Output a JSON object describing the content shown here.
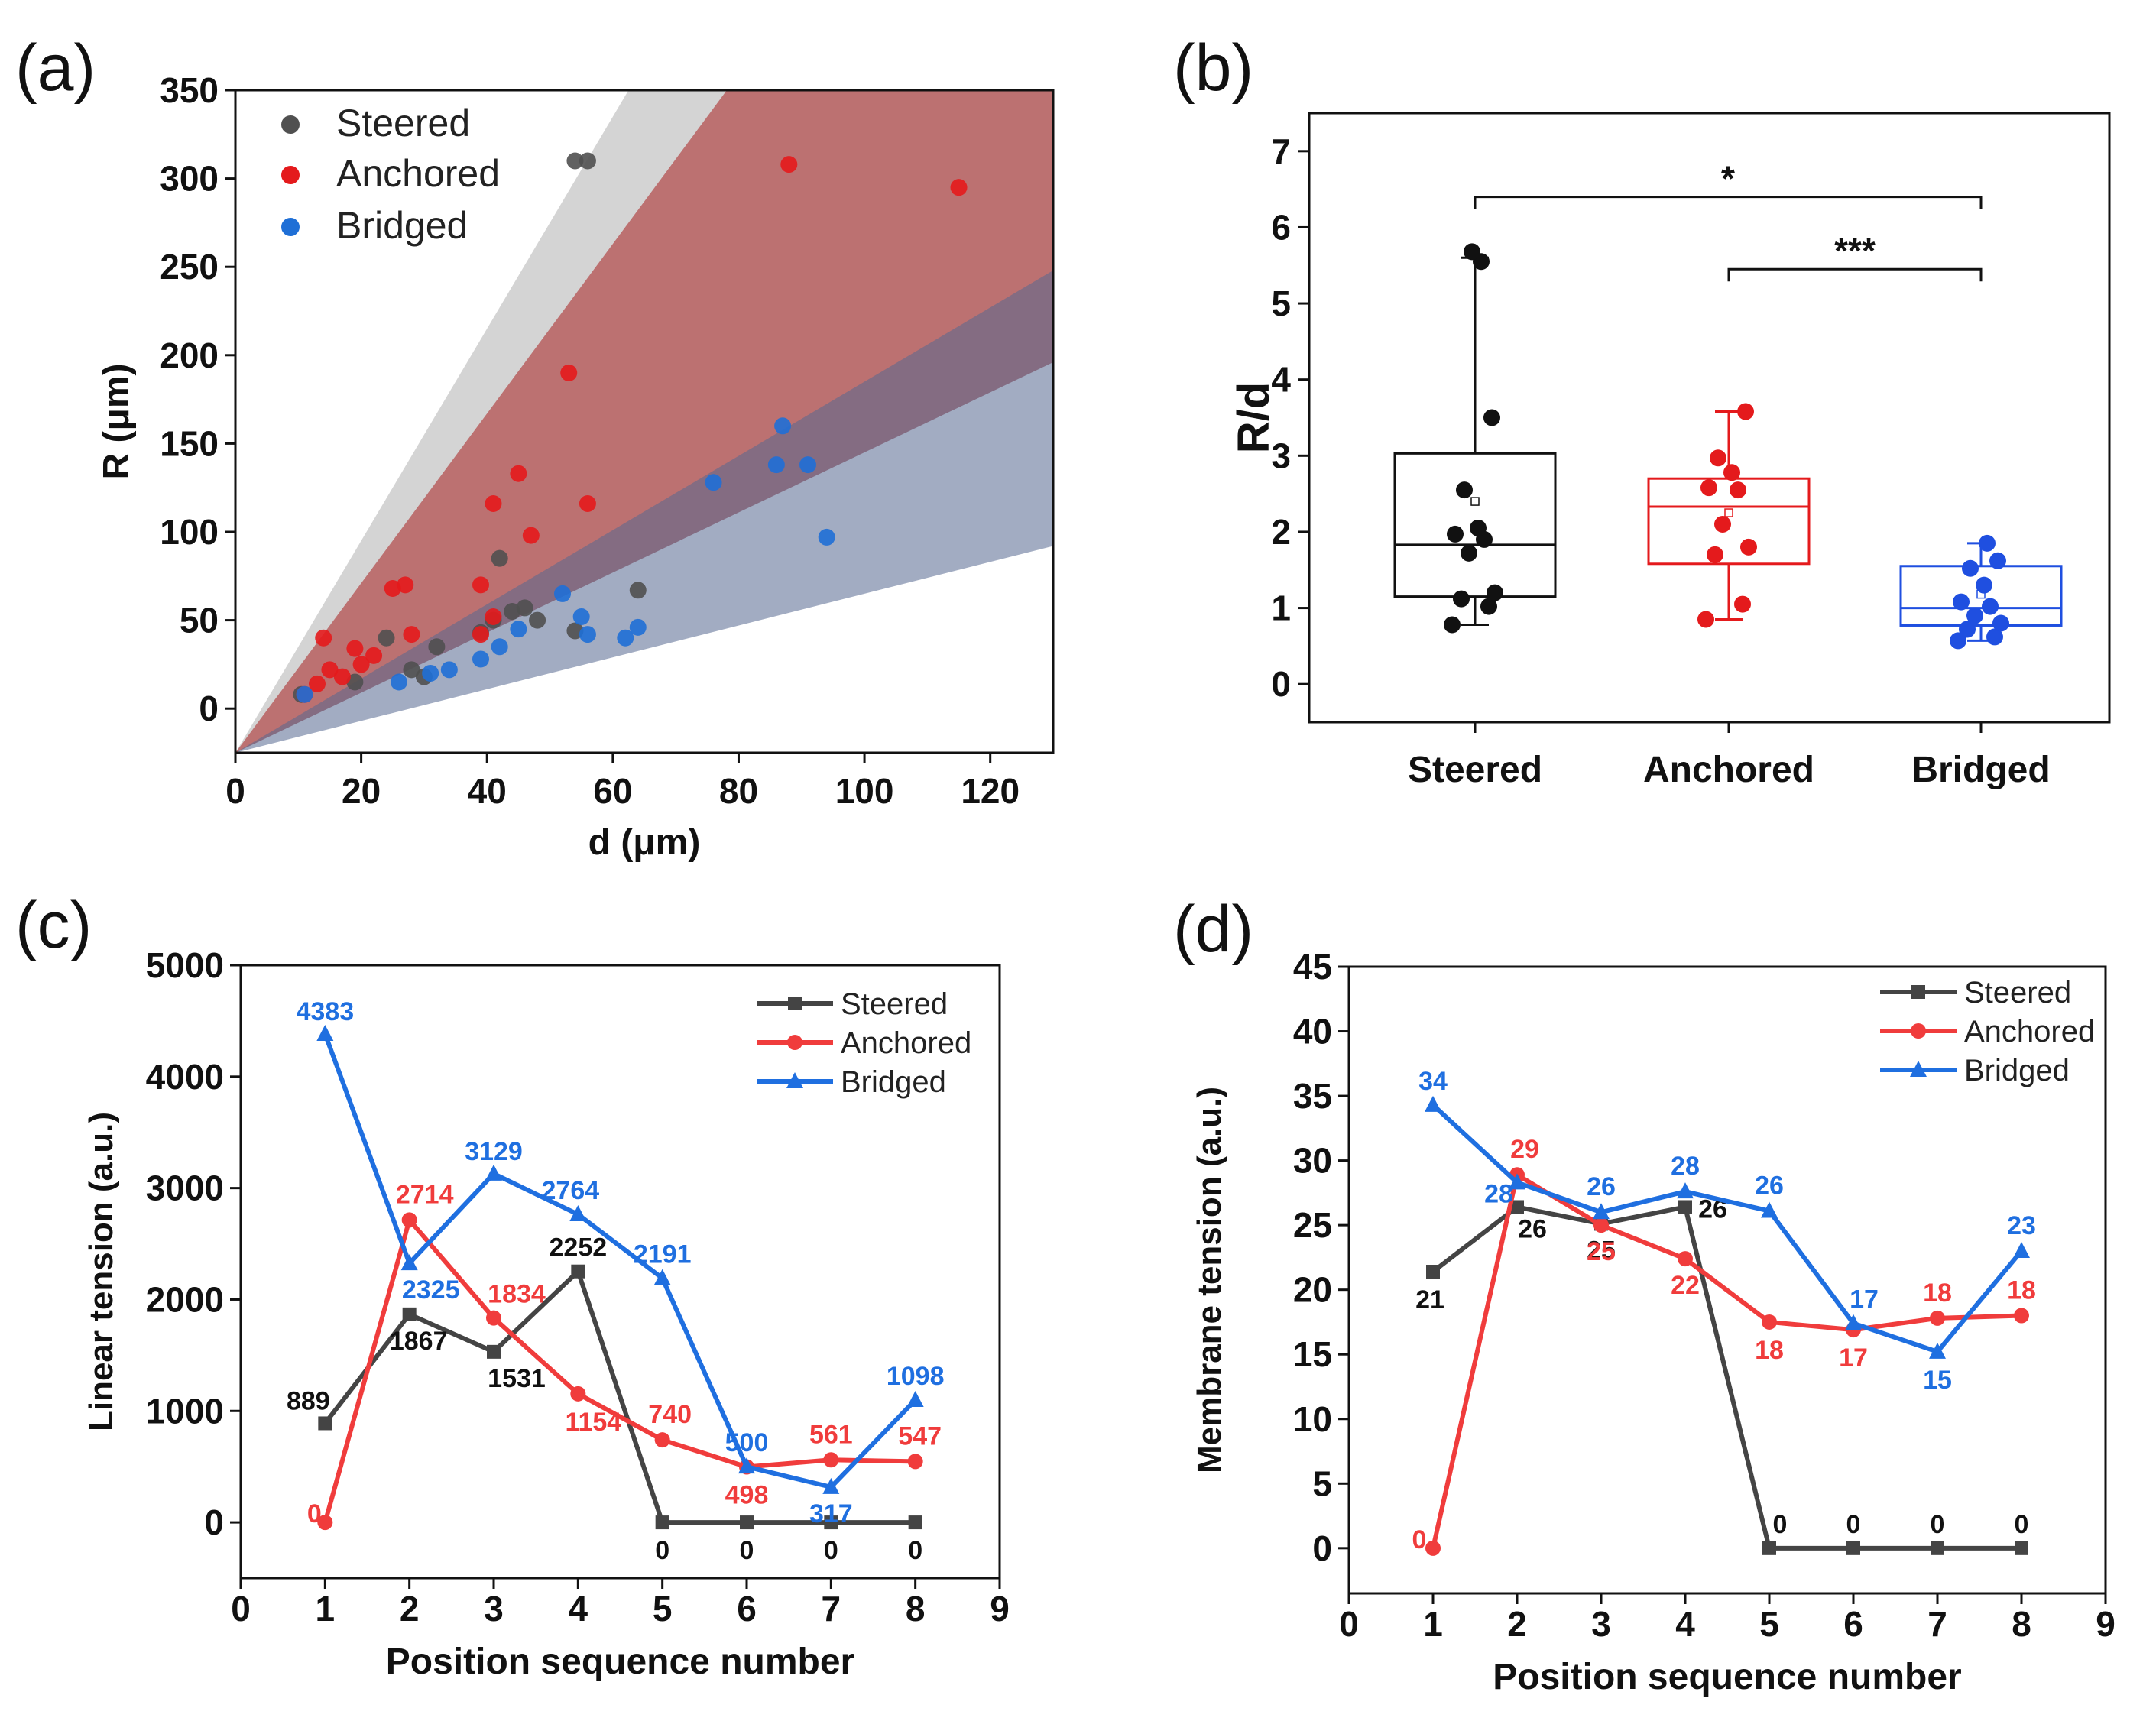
{
  "figure": {
    "panel_labels": [
      "(a)",
      "(b)",
      "(c)",
      "(d)"
    ]
  },
  "chart_data": [
    {
      "panel": "(a)",
      "type": "scatter",
      "xlabel": "d (μm)",
      "ylabel": "R (μm)",
      "xlim": [
        0,
        130
      ],
      "ylim": [
        -25,
        350
      ],
      "xticks": [
        0,
        20,
        40,
        60,
        80,
        100,
        120
      ],
      "yticks": [
        0,
        50,
        100,
        150,
        200,
        250,
        300,
        350
      ],
      "bands": [
        {
          "name": "Steered range",
          "color": "#a9a9a9",
          "opacity": 0.5,
          "slope_low": 1.7,
          "slope_high": 6.0
        },
        {
          "name": "Anchored range",
          "color": "#b34b4b",
          "opacity": 0.72,
          "slope_low": 1.7,
          "slope_high": 4.8
        },
        {
          "name": "Bridged range",
          "color": "#55678f",
          "opacity": 0.55,
          "slope_low": 0.9,
          "slope_high": 2.1
        }
      ],
      "band_origin": [
        0,
        -25
      ],
      "series": [
        {
          "name": "Steered",
          "color": "#505050",
          "points": [
            [
              10.5,
              8
            ],
            [
              19,
              15
            ],
            [
              24,
              40
            ],
            [
              28,
              22
            ],
            [
              30,
              18
            ],
            [
              32,
              35
            ],
            [
              39,
              43
            ],
            [
              41,
              50
            ],
            [
              42,
              85
            ],
            [
              44,
              55
            ],
            [
              46,
              57
            ],
            [
              48,
              50
            ],
            [
              54,
              44
            ],
            [
              54,
              310
            ],
            [
              56,
              310
            ],
            [
              64,
              67
            ]
          ]
        },
        {
          "name": "Anchored",
          "color": "#e41a1c",
          "points": [
            [
              11,
              8
            ],
            [
              13,
              14
            ],
            [
              14,
              40
            ],
            [
              15,
              22
            ],
            [
              17,
              18
            ],
            [
              19,
              34
            ],
            [
              20,
              25
            ],
            [
              22,
              30
            ],
            [
              25,
              68
            ],
            [
              27,
              70
            ],
            [
              28,
              42
            ],
            [
              39,
              70
            ],
            [
              39,
              42
            ],
            [
              41,
              116
            ],
            [
              41,
              52
            ],
            [
              45,
              133
            ],
            [
              47,
              98
            ],
            [
              53,
              190
            ],
            [
              56,
              116
            ],
            [
              88,
              308
            ],
            [
              115,
              295
            ]
          ]
        },
        {
          "name": "Bridged",
          "color": "#1f6fd6",
          "points": [
            [
              11,
              8
            ],
            [
              26,
              15
            ],
            [
              31,
              20
            ],
            [
              34,
              22
            ],
            [
              39,
              28
            ],
            [
              42,
              35
            ],
            [
              45,
              45
            ],
            [
              52,
              65
            ],
            [
              55,
              52
            ],
            [
              56,
              42
            ],
            [
              62,
              40
            ],
            [
              64,
              46
            ],
            [
              76,
              128
            ],
            [
              86,
              138
            ],
            [
              87,
              160
            ],
            [
              91,
              138
            ],
            [
              94,
              97
            ]
          ]
        }
      ]
    },
    {
      "panel": "(b)",
      "type": "box",
      "xlabel": "",
      "ylabel": "R/d",
      "ylim": [
        -0.5,
        7.5
      ],
      "yticks": [
        0,
        1,
        2,
        3,
        4,
        5,
        6,
        7
      ],
      "categories": [
        "Steered",
        "Anchored",
        "Bridged"
      ],
      "series": [
        {
          "name": "Steered",
          "color": "#111111",
          "q1": 1.15,
          "median": 1.83,
          "q3": 3.03,
          "mean": 2.4,
          "whisker_low": 0.78,
          "whisker_high": 5.6,
          "points": [
            0.78,
            1.02,
            1.12,
            1.2,
            1.72,
            1.9,
            1.97,
            2.05,
            2.55,
            3.5,
            5.55,
            5.68
          ]
        },
        {
          "name": "Anchored",
          "color": "#e41a1c",
          "q1": 1.58,
          "median": 2.33,
          "q3": 2.7,
          "mean": 2.25,
          "whisker_low": 0.85,
          "whisker_high": 3.58,
          "points": [
            0.85,
            1.05,
            1.7,
            1.8,
            2.1,
            2.55,
            2.58,
            2.78,
            2.97,
            3.58
          ]
        },
        {
          "name": "Bridged",
          "color": "#1f4fe0",
          "q1": 0.77,
          "median": 1.0,
          "q3": 1.55,
          "mean": 1.18,
          "whisker_low": 0.57,
          "whisker_high": 1.85,
          "points": [
            0.57,
            0.62,
            0.72,
            0.8,
            0.9,
            1.02,
            1.08,
            1.3,
            1.52,
            1.62,
            1.85
          ]
        }
      ],
      "significance": [
        {
          "from": "Steered",
          "to": "Bridged",
          "label": "*",
          "y": 6.4
        },
        {
          "from": "Anchored",
          "to": "Bridged",
          "label": "***",
          "y": 5.45
        }
      ]
    },
    {
      "panel": "(c)",
      "type": "line",
      "xlabel": "Position sequence number",
      "ylabel": "Linear tension (a.u.)",
      "xlim": [
        0,
        9
      ],
      "ylim": [
        -500,
        5000
      ],
      "xticks": [
        0,
        1,
        2,
        3,
        4,
        5,
        6,
        7,
        8,
        9
      ],
      "yticks": [
        0,
        1000,
        2000,
        3000,
        4000,
        5000
      ],
      "x": [
        1,
        2,
        3,
        4,
        5,
        6,
        7,
        8
      ],
      "series": [
        {
          "name": "Steered",
          "color": "#444444",
          "marker": "square",
          "values": [
            889,
            1867,
            1531,
            2252,
            0,
            0,
            0,
            0
          ],
          "labels": [
            "889",
            "1867",
            "1531",
            "2252",
            "0",
            "0",
            "0",
            "0"
          ]
        },
        {
          "name": "Anchored",
          "color": "#f03c3c",
          "marker": "circle",
          "values": [
            0,
            2714,
            1834,
            1154,
            740,
            498,
            561,
            547
          ],
          "labels": [
            "0",
            "2714",
            "1834",
            "1154",
            "740",
            "498",
            "561",
            "547"
          ]
        },
        {
          "name": "Bridged",
          "color": "#1f6fe0",
          "marker": "triangle",
          "values": [
            4383,
            2325,
            3129,
            2764,
            2191,
            500,
            317,
            1098
          ],
          "labels": [
            "4383",
            "2325",
            "3129",
            "2764",
            "2191",
            "500",
            "317",
            "1098"
          ]
        }
      ]
    },
    {
      "panel": "(d)",
      "type": "line",
      "xlabel": "Position sequence number",
      "ylabel": "Membrane tension (a.u.)",
      "xlim": [
        0,
        9
      ],
      "ylim": [
        -3.5,
        45
      ],
      "xticks": [
        0,
        1,
        2,
        3,
        4,
        5,
        6,
        7,
        8,
        9
      ],
      "yticks": [
        0,
        5,
        10,
        15,
        20,
        25,
        30,
        35,
        40,
        45
      ],
      "x": [
        1,
        2,
        3,
        4,
        5,
        6,
        7,
        8
      ],
      "series": [
        {
          "name": "Steered",
          "color": "#444444",
          "marker": "square",
          "values": [
            21.4,
            26.4,
            25.1,
            26.4,
            0,
            0,
            0,
            0
          ],
          "labels": [
            "21",
            "26",
            "25",
            "26",
            "0",
            "0",
            "0",
            "0"
          ]
        },
        {
          "name": "Anchored",
          "color": "#f03c3c",
          "marker": "circle",
          "values": [
            0,
            28.9,
            25.0,
            22.4,
            17.5,
            16.9,
            17.8,
            18.0
          ],
          "labels": [
            "0",
            "29",
            "25",
            "22",
            "18",
            "17",
            "18",
            "18"
          ]
        },
        {
          "name": "Bridged",
          "color": "#1f6fe0",
          "marker": "triangle",
          "values": [
            34.3,
            28.3,
            26.0,
            27.6,
            26.1,
            17.4,
            15.2,
            23.0
          ],
          "labels": [
            "34",
            "28",
            "26",
            "28",
            "26",
            "17",
            "15",
            "23"
          ]
        }
      ]
    }
  ]
}
